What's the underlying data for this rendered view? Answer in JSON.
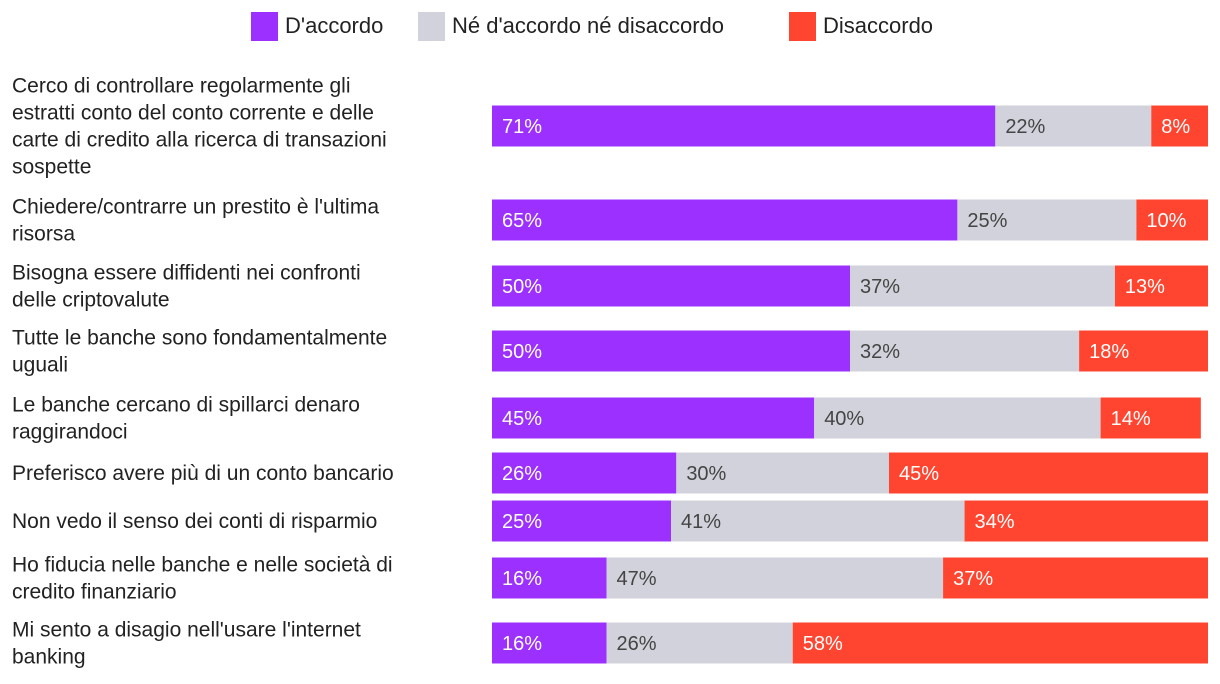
{
  "chart_data": {
    "type": "bar",
    "orientation": "horizontal",
    "stacked": true,
    "legend_position": "top",
    "series": [
      {
        "name": "D'accordo",
        "color": "#9b30ff",
        "values": [
          71,
          65,
          50,
          50,
          45,
          26,
          25,
          16,
          16
        ],
        "labels": [
          "71%",
          "65%",
          "50%",
          "50%",
          "45%",
          "26%",
          "25%",
          "16%",
          "16%"
        ]
      },
      {
        "name": "Né d'accordo né disaccordo",
        "color": "#d1d2db",
        "values": [
          22,
          25,
          37,
          32,
          40,
          30,
          41,
          47,
          26
        ],
        "labels": [
          "22%",
          "25%",
          "37%",
          "32%",
          "40%",
          "30%",
          "41%",
          "47%",
          "26%"
        ]
      },
      {
        "name": "Disaccordo",
        "color": "#ff4530",
        "values": [
          8,
          10,
          13,
          18,
          14,
          45,
          34,
          37,
          58
        ],
        "labels": [
          "8%",
          "10%",
          "13%",
          "18%",
          "14%",
          "45%",
          "34%",
          "37%",
          "58%"
        ]
      }
    ],
    "categories": [
      [
        "Cerco di controllare regolarmente gli",
        "estratti conto del conto corrente e delle",
        "carte di credito alla ricerca di transazioni",
        "sospette"
      ],
      [
        "Chiedere/contrarre un prestito è l'ultima",
        "risorsa"
      ],
      [
        "Bisogna essere diffidenti nei confronti",
        "delle criptovalute"
      ],
      [
        "Tutte le banche sono fondamentalmente",
        "uguali"
      ],
      [
        "Le banche cercano di spillarci denaro",
        "raggirandoci"
      ],
      [
        "Preferisco avere più di un conto bancario"
      ],
      [
        "Non vedo il senso dei conti di risparmio"
      ],
      [
        "Ho fiducia nelle banche e nelle società di",
        "credito finanziario"
      ],
      [
        "Mi sento a disagio nell'usare l'internet",
        "banking"
      ]
    ]
  }
}
